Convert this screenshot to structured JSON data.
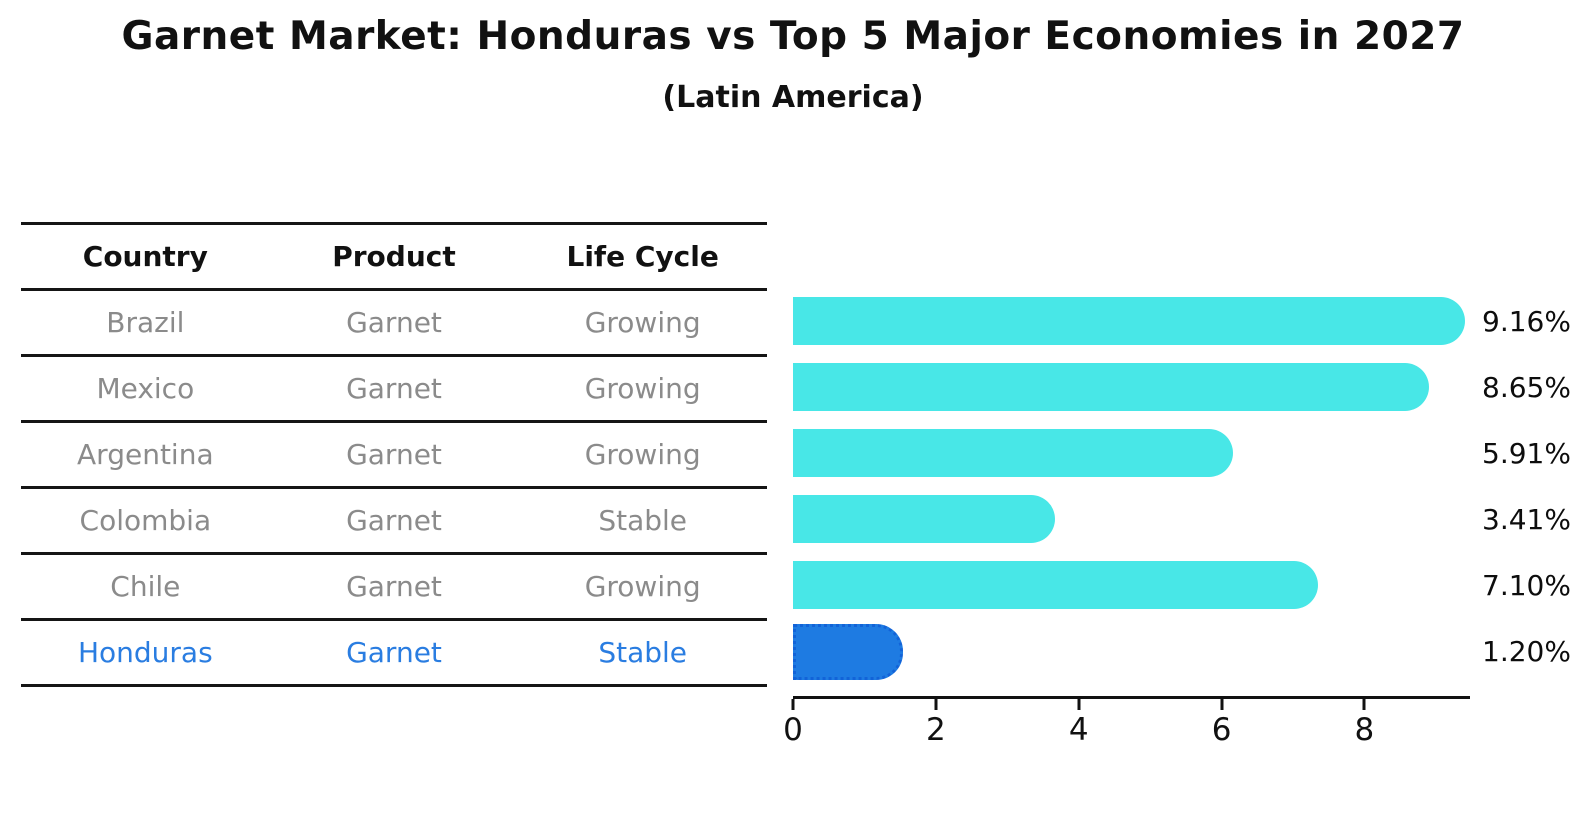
{
  "title": "Garnet Market: Honduras vs Top 5 Major Economies in 2027",
  "subtitle": "(Latin America)",
  "table": {
    "headers": [
      "Country",
      "Product",
      "Life Cycle"
    ],
    "rows": [
      {
        "country": "Brazil",
        "product": "Garnet",
        "life_cycle": "Growing"
      },
      {
        "country": "Mexico",
        "product": "Garnet",
        "life_cycle": "Growing"
      },
      {
        "country": "Argentina",
        "product": "Garnet",
        "life_cycle": "Growing"
      },
      {
        "country": "Colombia",
        "product": "Garnet",
        "life_cycle": "Stable"
      },
      {
        "country": "Chile",
        "product": "Garnet",
        "life_cycle": "Growing"
      },
      {
        "country": "Honduras",
        "product": "Garnet",
        "life_cycle": "Stable"
      }
    ],
    "highlighted_country": "Honduras"
  },
  "chart_data": {
    "type": "bar",
    "orientation": "horizontal",
    "title": "Garnet Market: Honduras vs Top 5 Major Economies in 2027",
    "subtitle": "(Latin America)",
    "categories": [
      "Brazil",
      "Mexico",
      "Argentina",
      "Colombia",
      "Chile",
      "Honduras"
    ],
    "values": [
      9.16,
      8.65,
      5.91,
      3.41,
      7.1,
      1.2
    ],
    "value_labels": [
      "9.16%",
      "8.65%",
      "5.91%",
      "3.41%",
      "7.10%",
      "1.20%"
    ],
    "x_ticks": [
      0,
      2,
      4,
      6,
      8
    ],
    "x_tick_labels": [
      "0",
      "2",
      "4",
      "6",
      "8"
    ],
    "xlim": [
      0,
      9.45
    ],
    "grid": false,
    "legend": false,
    "highlight_index": 5
  },
  "colors": {
    "bar": "#48E7E7",
    "highlight_bar": "#1E7BE2",
    "highlight_bar_edge": "#1263D8",
    "highlight_text": "#2A7DE1",
    "row_text": "#8B8B8B",
    "line": "#151515",
    "background": "#FFFFFF"
  }
}
